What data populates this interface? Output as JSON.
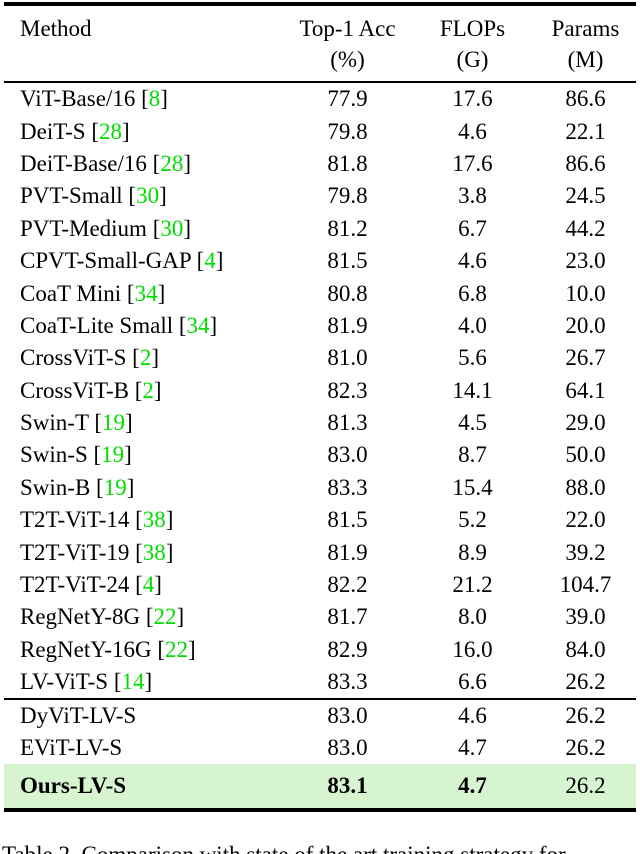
{
  "colors": {
    "citation_green": "#00dd00",
    "highlight_green": "#d7f4d1",
    "rule_black": "#000000"
  },
  "table": {
    "headers": {
      "method": "Method",
      "acc_label": "Top-1 Acc",
      "acc_unit": "(%)",
      "flops_label": "FLOPs",
      "flops_unit": "(G)",
      "params_label": "Params",
      "params_unit": "(M)"
    },
    "citation_open": "[",
    "citation_close": "]",
    "groups": [
      {
        "rows": [
          {
            "name": "ViT-Base/16",
            "ref": "8",
            "acc": "77.9",
            "flops": "17.6",
            "params": "86.6"
          },
          {
            "name": "DeiT-S",
            "ref": "28",
            "acc": "79.8",
            "flops": "4.6",
            "params": "22.1"
          },
          {
            "name": "DeiT-Base/16",
            "ref": "28",
            "acc": "81.8",
            "flops": "17.6",
            "params": "86.6"
          },
          {
            "name": "PVT-Small",
            "ref": "30",
            "acc": "79.8",
            "flops": "3.8",
            "params": "24.5"
          },
          {
            "name": "PVT-Medium",
            "ref": "30",
            "acc": "81.2",
            "flops": "6.7",
            "params": "44.2"
          },
          {
            "name": "CPVT-Small-GAP",
            "ref": "4",
            "acc": "81.5",
            "flops": "4.6",
            "params": "23.0"
          },
          {
            "name": "CoaT Mini",
            "ref": "34",
            "acc": "80.8",
            "flops": "6.8",
            "params": "10.0"
          },
          {
            "name": "CoaT-Lite Small",
            "ref": "34",
            "acc": "81.9",
            "flops": "4.0",
            "params": "20.0"
          },
          {
            "name": "CrossViT-S",
            "ref": "2",
            "acc": "81.0",
            "flops": "5.6",
            "params": "26.7"
          },
          {
            "name": "CrossViT-B",
            "ref": "2",
            "acc": "82.3",
            "flops": "14.1",
            "params": "64.1"
          },
          {
            "name": "Swin-T",
            "ref": "19",
            "acc": "81.3",
            "flops": "4.5",
            "params": "29.0"
          },
          {
            "name": "Swin-S",
            "ref": "19",
            "acc": "83.0",
            "flops": "8.7",
            "params": "50.0"
          },
          {
            "name": "Swin-B",
            "ref": "19",
            "acc": "83.3",
            "flops": "15.4",
            "params": "88.0"
          },
          {
            "name": "T2T-ViT-14",
            "ref": "38",
            "acc": "81.5",
            "flops": "5.2",
            "params": "22.0"
          },
          {
            "name": "T2T-ViT-19",
            "ref": "38",
            "acc": "81.9",
            "flops": "8.9",
            "params": "39.2"
          },
          {
            "name": "T2T-ViT-24",
            "ref": "4",
            "acc": "82.2",
            "flops": "21.2",
            "params": "104.7"
          },
          {
            "name": "RegNetY-8G",
            "ref": "22",
            "acc": "81.7",
            "flops": "8.0",
            "params": "39.0"
          },
          {
            "name": "RegNetY-16G",
            "ref": "22",
            "acc": "82.9",
            "flops": "16.0",
            "params": "84.0"
          },
          {
            "name": "LV-ViT-S",
            "ref": "14",
            "acc": "83.3",
            "flops": "6.6",
            "params": "26.2"
          }
        ]
      },
      {
        "rows": [
          {
            "name": "DyViT-LV-S",
            "ref": null,
            "acc": "83.0",
            "flops": "4.6",
            "params": "26.2"
          },
          {
            "name": "EViT-LV-S",
            "ref": null,
            "acc": "83.0",
            "flops": "4.7",
            "params": "26.2"
          },
          {
            "name": "Ours-LV-S",
            "ref": null,
            "acc": "83.1",
            "flops": "4.7",
            "params": "26.2",
            "bold": true,
            "highlight": true
          }
        ]
      }
    ]
  },
  "caption": {
    "text": "Table 2. Comparison with state of the art training strategy for"
  }
}
